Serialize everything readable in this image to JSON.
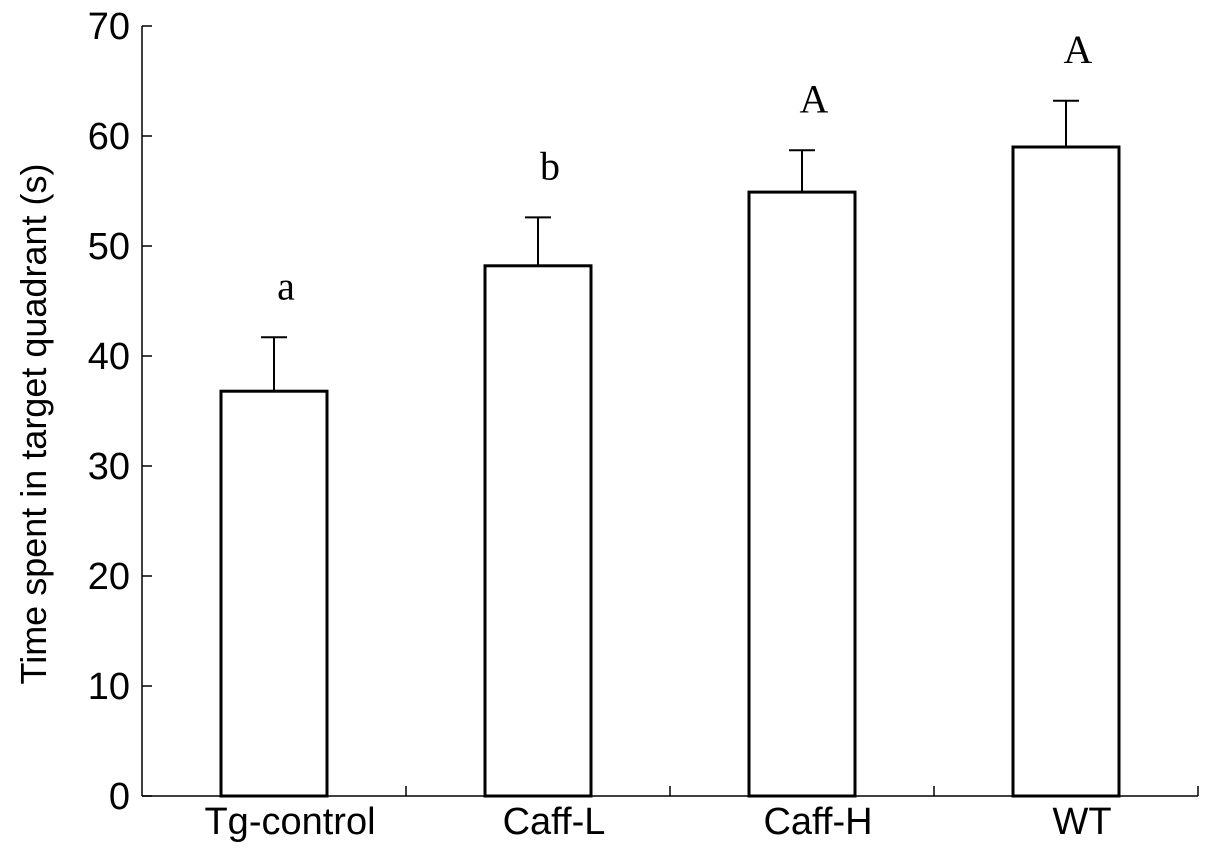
{
  "chart_data": {
    "type": "bar",
    "categories": [
      "Tg-control",
      "Caff-L",
      "Caff-H",
      "WT"
    ],
    "values": [
      36.8,
      48.2,
      54.9,
      59.0
    ],
    "error_upper": [
      41.7,
      52.6,
      58.7,
      63.2
    ],
    "significance_labels": [
      "a",
      "b",
      "A",
      "A"
    ],
    "ylabel": "Time spent in target quadrant (s)",
    "xlabel": "",
    "title": "",
    "ylim": [
      0,
      70
    ],
    "yticks": [
      0,
      10,
      20,
      30,
      40,
      50,
      60,
      70
    ],
    "grid": false,
    "bar_fill": "#ffffff",
    "bar_stroke": "#000000"
  }
}
